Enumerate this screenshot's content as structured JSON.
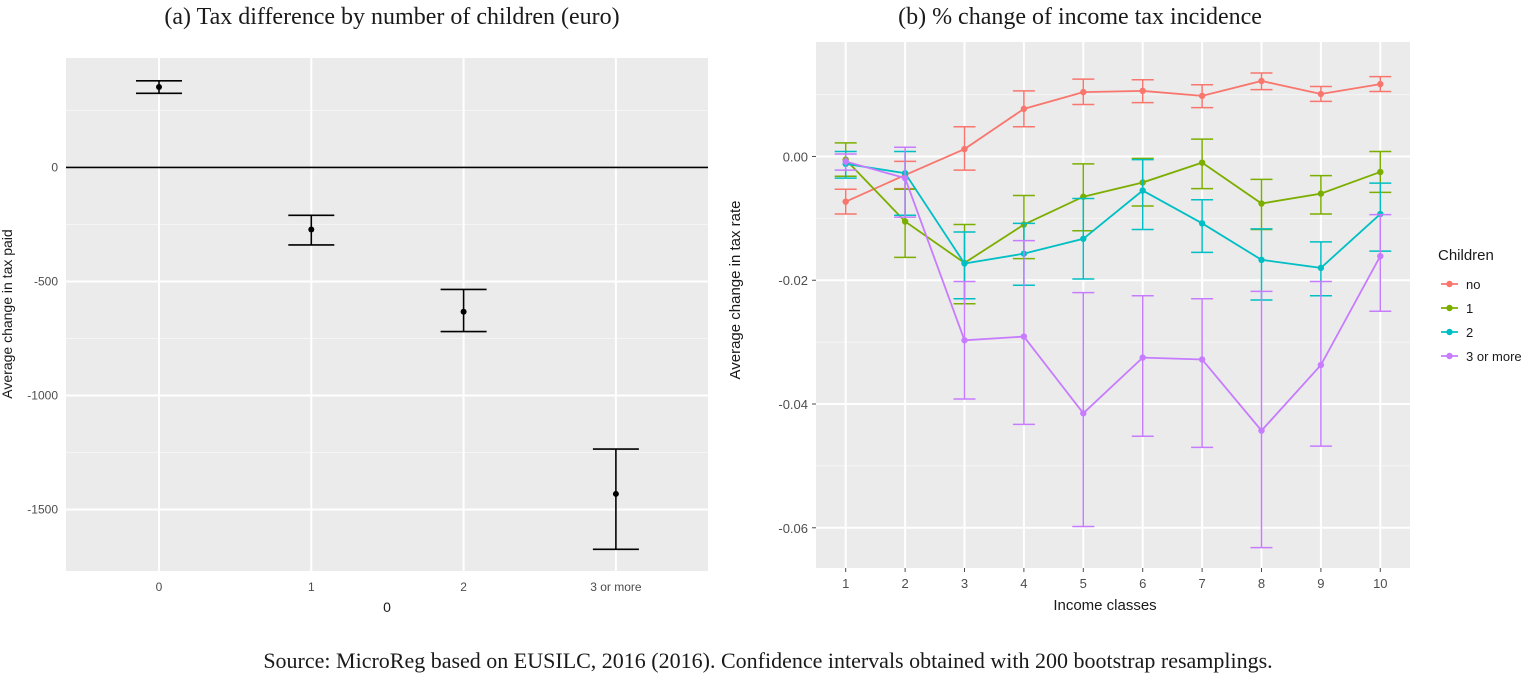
{
  "caption": "Source: MicroReg based on EUSILC, 2016 (2016). Confidence intervals obtained with 200 bootstrap resamplings.",
  "chart_data": [
    {
      "type": "scatter",
      "title": "(a) Tax difference by number of children (euro)",
      "xlabel": "0",
      "ylabel": "Average change in tax paid",
      "categories": [
        "0",
        "1",
        "2",
        "3 or more"
      ],
      "values": [
        353,
        -272,
        -633,
        -1432
      ],
      "ci_lower": [
        325,
        -340,
        -720,
        -1675
      ],
      "ci_upper": [
        380,
        -210,
        -535,
        -1235
      ],
      "yticks": [
        0,
        -500,
        -1000,
        -1500
      ],
      "ytick_labels": [
        "0",
        "-500",
        "-1000",
        "-1500"
      ],
      "ylim": [
        -1770,
        480
      ],
      "reference_line_y": 0,
      "grid": true,
      "color": "#000000"
    },
    {
      "type": "line",
      "title": "(b) % change of income tax incidence",
      "xlabel": "Income classes",
      "ylabel": "Average change in tax rate",
      "x": [
        1,
        2,
        3,
        4,
        5,
        6,
        7,
        8,
        9,
        10
      ],
      "xtick_labels": [
        "1",
        "2",
        "3",
        "4",
        "5",
        "6",
        "7",
        "8",
        "9",
        "10"
      ],
      "yticks": [
        0.0,
        -0.02,
        -0.04,
        -0.06
      ],
      "ytick_labels": [
        "0.00",
        "-0.02",
        "-0.04",
        "-0.06"
      ],
      "xlim": [
        0.5,
        10.5
      ],
      "ylim": [
        -0.0665,
        0.0185
      ],
      "grid": true,
      "legend_title": "Children",
      "legend_position": "right",
      "series": [
        {
          "name": "no",
          "color": "#F8766D",
          "values": [
            -0.0073,
            -0.003,
            0.0012,
            0.0077,
            0.0104,
            0.0106,
            0.0098,
            0.0122,
            0.0101,
            0.0117
          ],
          "lower": [
            -0.0093,
            -0.0052,
            -0.0022,
            0.0048,
            0.0084,
            0.0087,
            0.0079,
            0.0108,
            0.0089,
            0.0105
          ],
          "upper": [
            -0.0053,
            -0.0008,
            0.0048,
            0.0106,
            0.0125,
            0.0124,
            0.0116,
            0.0135,
            0.0113,
            0.0129
          ]
        },
        {
          "name": "1",
          "color": "#7CAE00",
          "values": [
            -0.0005,
            -0.0105,
            -0.0172,
            -0.011,
            -0.0065,
            -0.0042,
            -0.001,
            -0.0076,
            -0.006,
            -0.0025
          ],
          "lower": [
            -0.0032,
            -0.0163,
            -0.0238,
            -0.0165,
            -0.012,
            -0.008,
            -0.0052,
            -0.0118,
            -0.0093,
            -0.0058
          ],
          "upper": [
            0.0022,
            -0.0053,
            -0.011,
            -0.0063,
            -0.0012,
            -0.0003,
            0.0028,
            -0.0037,
            -0.0031,
            0.0008
          ]
        },
        {
          "name": "2",
          "color": "#00BFC4",
          "values": [
            -0.0012,
            -0.0027,
            -0.0173,
            -0.0157,
            -0.0133,
            -0.0055,
            -0.0108,
            -0.0167,
            -0.018,
            -0.0093
          ],
          "lower": [
            -0.0035,
            -0.0095,
            -0.023,
            -0.0208,
            -0.0198,
            -0.0118,
            -0.0155,
            -0.0232,
            -0.0225,
            -0.0153
          ],
          "upper": [
            0.0008,
            0.0008,
            -0.0122,
            -0.0108,
            -0.0068,
            -0.0005,
            -0.007,
            -0.0117,
            -0.0138,
            -0.0043
          ]
        },
        {
          "name": "3 or more",
          "color": "#C77CFF",
          "values": [
            -0.0008,
            -0.0035,
            -0.0297,
            -0.0291,
            -0.0415,
            -0.0325,
            -0.0328,
            -0.0443,
            -0.0337,
            -0.0161
          ],
          "lower": [
            -0.0022,
            -0.0098,
            -0.0392,
            -0.0433,
            -0.0598,
            -0.0452,
            -0.047,
            -0.0632,
            -0.0468,
            -0.025
          ],
          "upper": [
            0.0004,
            0.0015,
            -0.0202,
            -0.0136,
            -0.022,
            -0.0225,
            -0.023,
            -0.0218,
            -0.0202,
            -0.0094
          ]
        }
      ]
    }
  ]
}
